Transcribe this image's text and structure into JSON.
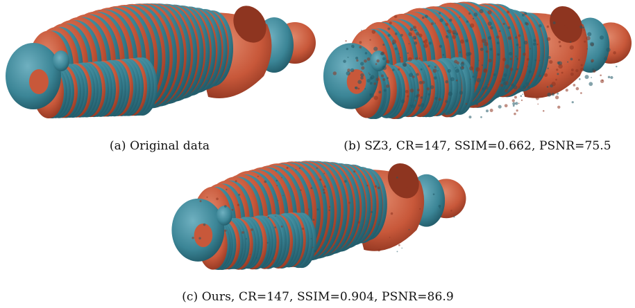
{
  "colors": {
    "orange": "#c8583a",
    "orange_dark": "#8e3520",
    "orange_light": "#e0876a",
    "teal": "#3b8596",
    "teal_dark": "#205866",
    "teal_light": "#6fb0c0"
  },
  "figure": {
    "panels": [
      {
        "id": "a",
        "caption": "(a) Original data",
        "style": "smooth"
      },
      {
        "id": "b",
        "caption": "(b) SZ3, CR=147, SSIM=0.662, PSNR=75.5",
        "style": "noisy"
      },
      {
        "id": "c",
        "caption": "(c) Ours, CR=147, SSIM=0.904, PSNR=86.9",
        "style": "slight"
      }
    ]
  }
}
